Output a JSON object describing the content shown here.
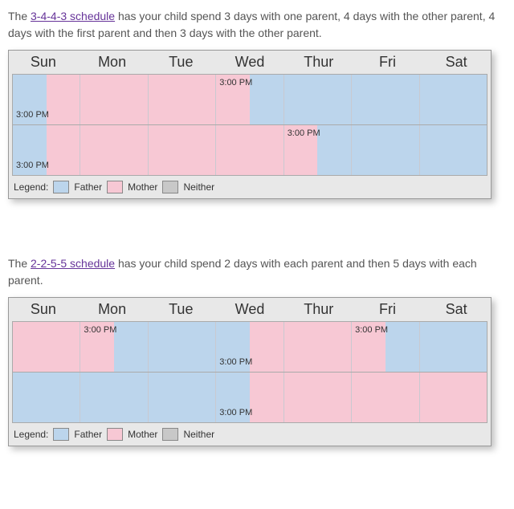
{
  "colors": {
    "father": "#bcd5ec",
    "mother": "#f7c8d4",
    "neither": "#c8c8c8",
    "link": "#663399"
  },
  "legend": {
    "label": "Legend:",
    "father": "Father",
    "mother": "Mother",
    "neither": "Neither"
  },
  "days": [
    "Sun",
    "Mon",
    "Tue",
    "Wed",
    "Thur",
    "Fri",
    "Sat"
  ],
  "time_label": "3:00 PM",
  "block1": {
    "intro_pre": "The ",
    "link_text": "3-4-4-3 schedule",
    "intro_post": " has your child spend 3 days with one parent, 4 days with the other parent, 4 days with the first parent and then 3 days with the other parent.",
    "rows": [
      {
        "cells": [
          {
            "halves": [
              "father",
              "mother"
            ],
            "label": "3:00 PM",
            "label_pos": "bottom"
          },
          {
            "halves": [
              "mother",
              "mother"
            ]
          },
          {
            "halves": [
              "mother",
              "mother"
            ]
          },
          {
            "halves": [
              "mother",
              "father"
            ],
            "label": "3:00 PM",
            "label_pos": "top"
          },
          {
            "halves": [
              "father",
              "father"
            ]
          },
          {
            "halves": [
              "father",
              "father"
            ]
          },
          {
            "halves": [
              "father",
              "father"
            ]
          }
        ]
      },
      {
        "cells": [
          {
            "halves": [
              "father",
              "mother"
            ],
            "label": "3:00 PM",
            "label_pos": "bottom"
          },
          {
            "halves": [
              "mother",
              "mother"
            ]
          },
          {
            "halves": [
              "mother",
              "mother"
            ]
          },
          {
            "halves": [
              "mother",
              "mother"
            ]
          },
          {
            "halves": [
              "mother",
              "father"
            ],
            "label": "3:00 PM",
            "label_pos": "top"
          },
          {
            "halves": [
              "father",
              "father"
            ]
          },
          {
            "halves": [
              "father",
              "father"
            ]
          }
        ]
      }
    ]
  },
  "block2": {
    "intro_pre": "The ",
    "link_text": "2-2-5-5 schedule",
    "intro_post": " has your child spend 2 days with each parent and then 5 days with each parent.",
    "rows": [
      {
        "cells": [
          {
            "halves": [
              "mother",
              "mother"
            ]
          },
          {
            "halves": [
              "mother",
              "father"
            ],
            "label": "3:00 PM",
            "label_pos": "top"
          },
          {
            "halves": [
              "father",
              "father"
            ]
          },
          {
            "halves": [
              "father",
              "mother"
            ],
            "label": "3:00 PM",
            "label_pos": "bottom"
          },
          {
            "halves": [
              "mother",
              "mother"
            ]
          },
          {
            "halves": [
              "mother",
              "father"
            ],
            "label": "3:00 PM",
            "label_pos": "top"
          },
          {
            "halves": [
              "father",
              "father"
            ]
          }
        ]
      },
      {
        "cells": [
          {
            "halves": [
              "father",
              "father"
            ]
          },
          {
            "halves": [
              "father",
              "father"
            ]
          },
          {
            "halves": [
              "father",
              "father"
            ]
          },
          {
            "halves": [
              "father",
              "mother"
            ],
            "label": "3:00 PM",
            "label_pos": "bottom"
          },
          {
            "halves": [
              "mother",
              "mother"
            ]
          },
          {
            "halves": [
              "mother",
              "mother"
            ]
          },
          {
            "halves": [
              "mother",
              "mother"
            ]
          }
        ]
      }
    ]
  }
}
